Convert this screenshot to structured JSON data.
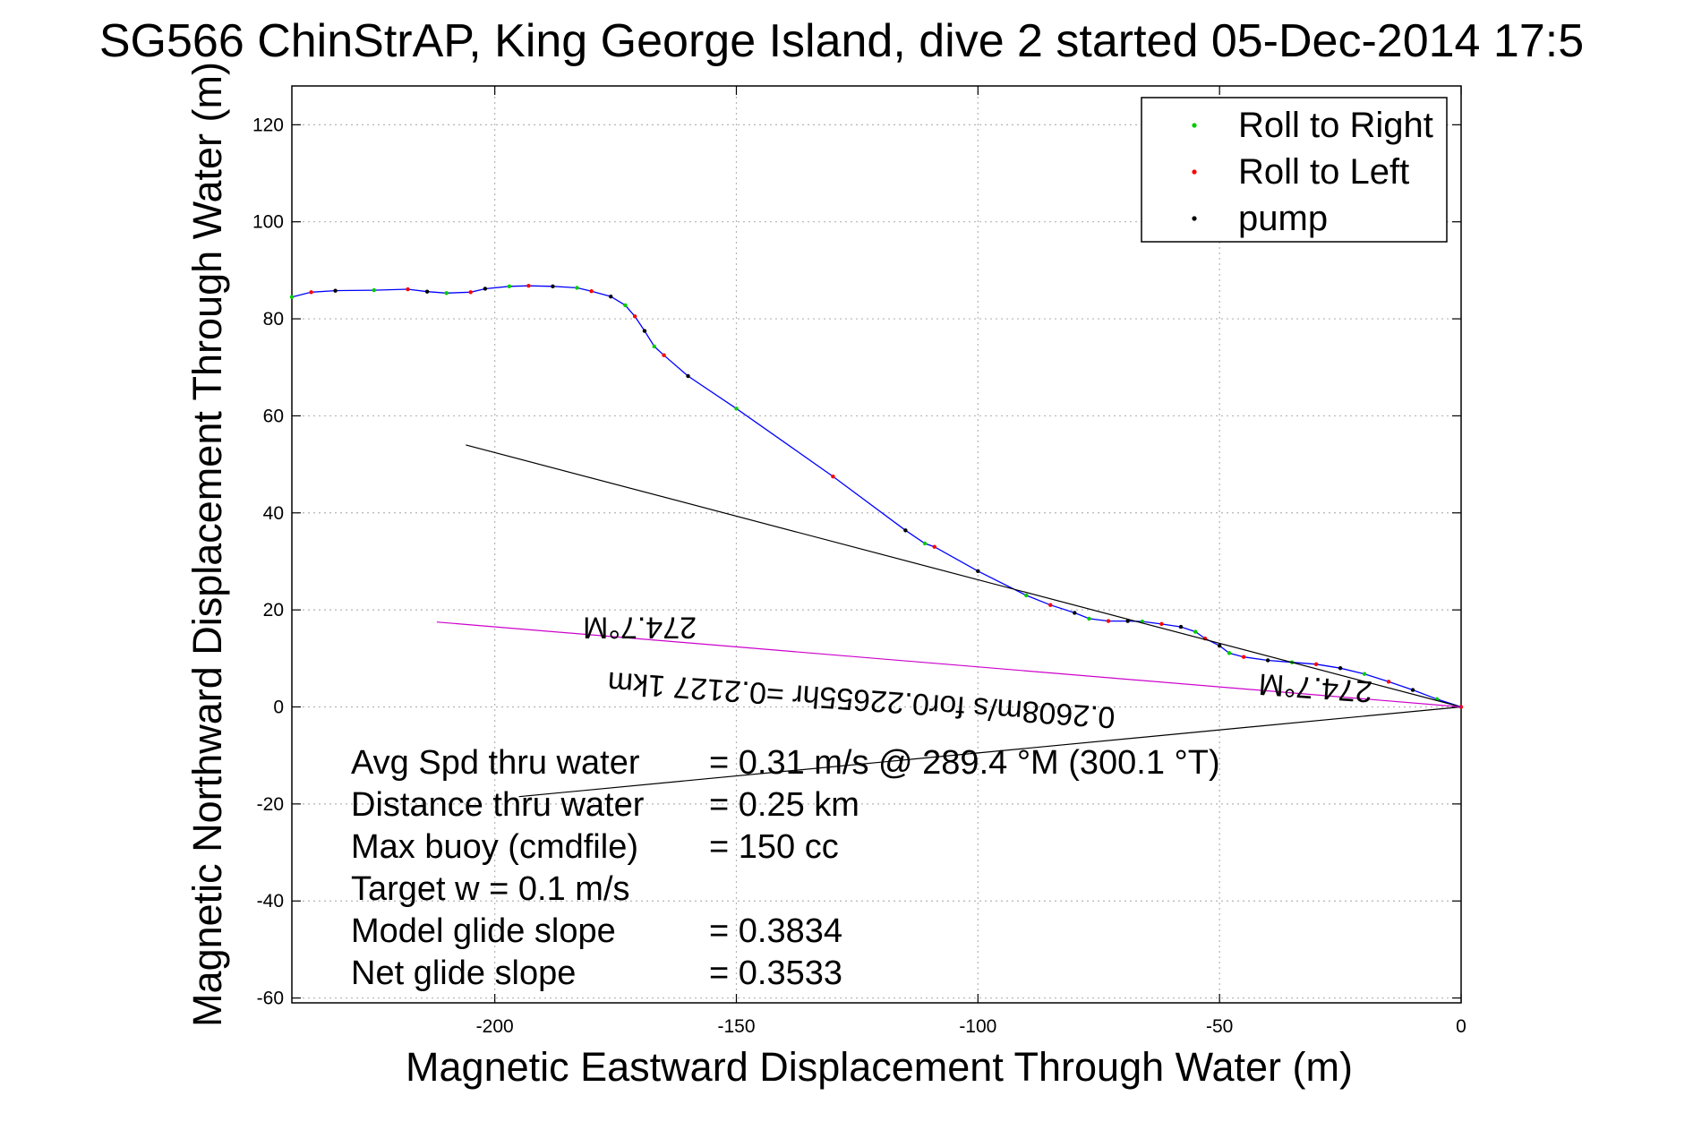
{
  "chart_data": {
    "type": "line",
    "title": "SG566 ChinStrAP, King George Island, dive 2 started 05-Dec-2014 17:5",
    "xlabel": "Magnetic Eastward Displacement Through Water (m)",
    "ylabel": "Magnetic Northward Displacement Through Water (m)",
    "xlim": [
      -242,
      0
    ],
    "ylim": [
      -61,
      128
    ],
    "xticks": [
      -200,
      -150,
      -100,
      -50,
      0
    ],
    "yticks": [
      -60,
      -40,
      -20,
      0,
      20,
      40,
      60,
      80,
      100,
      120
    ],
    "grid": true,
    "legend_position": "top-right",
    "legend": [
      {
        "label": "Roll to Right",
        "color": "#00cc00"
      },
      {
        "label": "Roll to Left",
        "color": "#ff0000"
      },
      {
        "label": "pump",
        "color": "#000000"
      }
    ],
    "series": [
      {
        "role": "track",
        "color": "#0000ff",
        "points": [
          [
            -242,
            84.5
          ],
          [
            -238,
            85.5
          ],
          [
            -233,
            85.8
          ],
          [
            -225,
            85.9
          ],
          [
            -218,
            86.1
          ],
          [
            -214,
            85.6
          ],
          [
            -210,
            85.3
          ],
          [
            -205,
            85.5
          ],
          [
            -202,
            86.2
          ],
          [
            -197,
            86.7
          ],
          [
            -193,
            86.8
          ],
          [
            -188,
            86.7
          ],
          [
            -183,
            86.4
          ],
          [
            -180,
            85.7
          ],
          [
            -176,
            84.6
          ],
          [
            -173,
            82.8
          ],
          [
            -171,
            80.5
          ],
          [
            -169,
            77.5
          ],
          [
            -167,
            74.3
          ],
          [
            -165,
            72.5
          ],
          [
            -160,
            68.2
          ],
          [
            -150,
            61.5
          ],
          [
            -130,
            47.5
          ],
          [
            -115,
            36.4
          ],
          [
            -111,
            33.7
          ],
          [
            -109,
            33.0
          ],
          [
            -100,
            28.0
          ],
          [
            -90,
            23.0
          ],
          [
            -85,
            21.0
          ],
          [
            -80,
            19.4
          ],
          [
            -77,
            18.2
          ],
          [
            -73,
            17.7
          ],
          [
            -69,
            17.7
          ],
          [
            -66,
            17.6
          ],
          [
            -62,
            17.1
          ],
          [
            -58,
            16.5
          ],
          [
            -55,
            15.5
          ],
          [
            -53,
            14.1
          ],
          [
            -50,
            12.6
          ],
          [
            -48,
            11.1
          ],
          [
            -45,
            10.3
          ],
          [
            -40,
            9.6
          ],
          [
            -35,
            9.2
          ],
          [
            -30,
            8.8
          ],
          [
            -25,
            8.0
          ],
          [
            -20,
            6.8
          ],
          [
            -15,
            5.2
          ],
          [
            -10,
            3.5
          ],
          [
            -5,
            1.6
          ],
          [
            0,
            0
          ]
        ]
      },
      {
        "role": "reference-line",
        "color": "#000000",
        "points": [
          [
            -206,
            54
          ],
          [
            0,
            0
          ]
        ]
      },
      {
        "role": "reference-line",
        "color": "#000000",
        "points": [
          [
            -195,
            -18.5
          ],
          [
            0,
            0
          ]
        ]
      },
      {
        "role": "current-vector",
        "color": "#cc00cc",
        "points": [
          [
            -212,
            17.5
          ],
          [
            0,
            0
          ]
        ]
      }
    ],
    "stats": [
      {
        "label": "Avg Spd thru water",
        "value": "=  0.31 m/s @ 289.4 °M (300.1 °T)"
      },
      {
        "label": "Distance thru water",
        "value": "=  0.25 km"
      },
      {
        "label": "Max buoy (cmdfile)",
        "value": "= 150 cc"
      },
      {
        "label": "Target w    = 0.1 m/s",
        "value": ""
      },
      {
        "label": "Model glide slope",
        "value": "= 0.3834"
      },
      {
        "label": "Net glide slope",
        "value": "= 0.3533"
      }
    ],
    "annotations": [
      {
        "text": "274.7°M",
        "x": -170,
        "y": 18.5,
        "rotation": 180
      },
      {
        "text": "0.2608m/s for0.22655hr =0.2127 1km",
        "x": -124,
        "y": 3.5,
        "rotation": 184
      },
      {
        "text": "274.7°M",
        "x": -30,
        "y": 6,
        "rotation": 184
      }
    ]
  }
}
